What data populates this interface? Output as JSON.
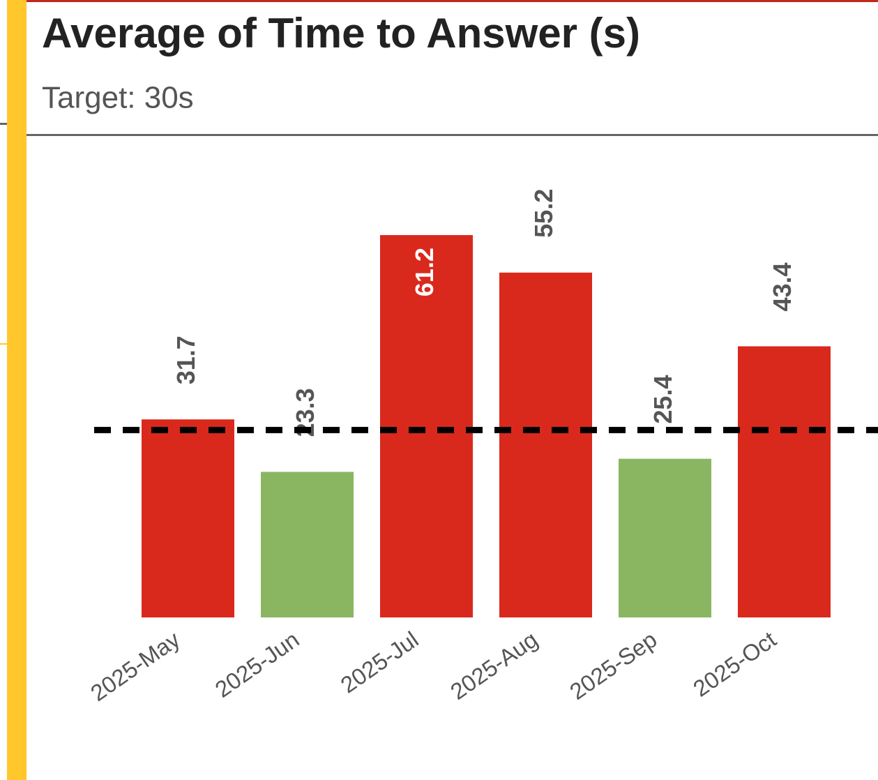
{
  "chart_data": {
    "type": "bar",
    "title": "Average of Time to Answer (s)",
    "subtitle": "Target: 30s",
    "categories": [
      "2025-May",
      "2025-Jun",
      "2025-Jul",
      "2025-Aug",
      "2025-Sep",
      "2025-Oct"
    ],
    "values": [
      31.7,
      23.3,
      61.2,
      55.2,
      25.4,
      43.4
    ],
    "colors": [
      "#d9291c",
      "#8ab661",
      "#d9291c",
      "#d9291c",
      "#8ab661",
      "#d9291c"
    ],
    "target": 30
  }
}
